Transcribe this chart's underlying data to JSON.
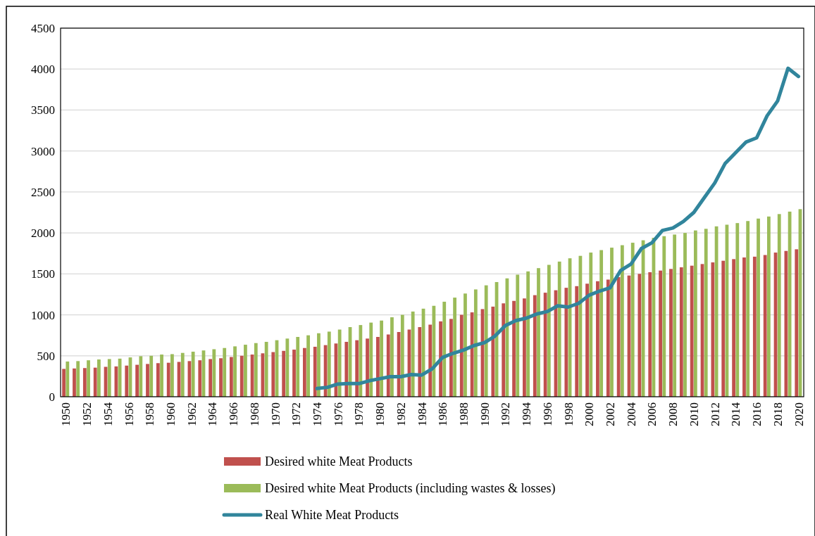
{
  "chart_data": {
    "type": "bar",
    "categories": [
      "1950",
      null,
      "1952",
      null,
      "1954",
      null,
      "1956",
      null,
      "1958",
      null,
      "1960",
      null,
      "1962",
      null,
      "1964",
      null,
      "1966",
      null,
      "1968",
      null,
      "1970",
      null,
      "1972",
      null,
      "1974",
      null,
      "1976",
      null,
      "1978",
      null,
      "1980",
      null,
      "1982",
      null,
      "1984",
      null,
      "1986",
      null,
      "1988",
      null,
      "1990",
      null,
      "1992",
      null,
      "1994",
      null,
      "1996",
      null,
      "1998",
      null,
      "2000",
      null,
      "2002",
      null,
      "2004",
      null,
      "2006",
      null,
      "2008",
      null,
      "2010",
      null,
      "2012",
      null,
      "2014",
      null,
      "2016",
      null,
      "2018",
      null,
      "2020"
    ],
    "series": [
      {
        "name": "Desired white Meat Products",
        "color": "#c0504d",
        "values": [
          340,
          345,
          350,
          355,
          365,
          370,
          380,
          390,
          400,
          410,
          415,
          425,
          435,
          445,
          460,
          470,
          485,
          500,
          515,
          530,
          545,
          560,
          575,
          595,
          610,
          630,
          650,
          670,
          690,
          710,
          730,
          760,
          790,
          820,
          850,
          880,
          920,
          950,
          1000,
          1030,
          1070,
          1100,
          1140,
          1170,
          1200,
          1240,
          1270,
          1300,
          1330,
          1350,
          1380,
          1410,
          1430,
          1460,
          1480,
          1500,
          1520,
          1540,
          1560,
          1580,
          1600,
          1620,
          1640,
          1660,
          1680,
          1700,
          1710,
          1730,
          1760,
          1780,
          1800
        ]
      },
      {
        "name": "Desired white Meat Products (including wastes & losses)",
        "color": "#9bbb59",
        "values": [
          430,
          435,
          445,
          455,
          460,
          465,
          480,
          495,
          500,
          515,
          520,
          535,
          550,
          565,
          580,
          595,
          615,
          635,
          655,
          670,
          690,
          710,
          730,
          750,
          775,
          795,
          820,
          850,
          875,
          905,
          930,
          970,
          1000,
          1040,
          1075,
          1110,
          1160,
          1210,
          1260,
          1310,
          1360,
          1400,
          1445,
          1490,
          1530,
          1570,
          1610,
          1650,
          1690,
          1720,
          1760,
          1790,
          1820,
          1850,
          1880,
          1910,
          1940,
          1960,
          1980,
          2000,
          2030,
          2050,
          2080,
          2100,
          2120,
          2145,
          2175,
          2200,
          2230,
          2260,
          2290
        ]
      },
      {
        "name": "Real White Meat Products",
        "type": "line",
        "color": "#31859c",
        "values": [
          null,
          null,
          null,
          null,
          null,
          null,
          null,
          null,
          null,
          null,
          null,
          null,
          null,
          null,
          null,
          null,
          null,
          null,
          null,
          null,
          null,
          null,
          null,
          null,
          100,
          115,
          155,
          160,
          160,
          195,
          220,
          245,
          245,
          270,
          265,
          340,
          480,
          530,
          570,
          625,
          660,
          740,
          870,
          930,
          960,
          1010,
          1040,
          1110,
          1095,
          1140,
          1240,
          1290,
          1330,
          1540,
          1620,
          1810,
          1880,
          2030,
          2060,
          2140,
          2250,
          2430,
          2610,
          2850,
          2980,
          3110,
          3160,
          3430,
          3610,
          4010,
          3910
        ]
      }
    ],
    "ylim": [
      0,
      4500
    ],
    "yticks": [
      0,
      500,
      1000,
      1500,
      2000,
      2500,
      3000,
      3500,
      4000,
      4500
    ],
    "grid": "y",
    "legend": "bottom"
  }
}
